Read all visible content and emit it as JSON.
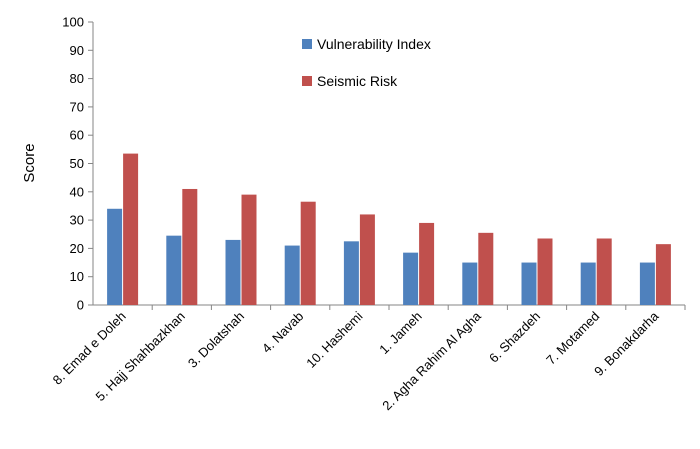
{
  "chart_data": {
    "type": "bar",
    "ylabel": "Score",
    "xlabel": "",
    "ylim": [
      0,
      100
    ],
    "yticks": [
      0,
      10,
      20,
      30,
      40,
      50,
      60,
      70,
      80,
      90,
      100
    ],
    "grid": false,
    "legend_position": "top-center",
    "categories": [
      "8. Emad e Doleh",
      "5. Hajj Shahbazkhan",
      "3. Dolatshah",
      "4. Navab",
      "10. Hashemi",
      "1. Jameh",
      "2. Agha Rahim Al Agha",
      "6. Shazdeh",
      "7. Motamed",
      "9. Bonakdarha"
    ],
    "series": [
      {
        "name": "Vulnerability Index",
        "color": "#4f81bd",
        "values": [
          34,
          24.5,
          23,
          21,
          22.5,
          18.5,
          15,
          15,
          15,
          15
        ]
      },
      {
        "name": "Seismic Risk",
        "color": "#c0504d",
        "values": [
          53.5,
          41,
          39,
          36.5,
          32,
          29,
          25.5,
          23.5,
          23.5,
          21.5
        ]
      }
    ]
  }
}
